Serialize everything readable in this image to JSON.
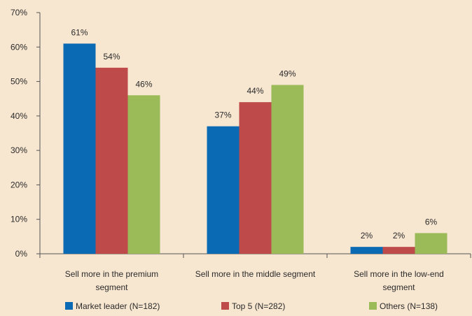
{
  "chart_data": {
    "type": "bar",
    "title": "",
    "xlabel": "",
    "ylabel": "",
    "ylim": [
      0,
      70
    ],
    "yticks": [
      0,
      10,
      20,
      30,
      40,
      50,
      60,
      70
    ],
    "ytick_suffix": "%",
    "grid": false,
    "legend_position": "bottom",
    "categories": [
      [
        "Sell more in the premium",
        "segment"
      ],
      [
        "Sell more in the middle segment"
      ],
      [
        "Sell more in the low-end",
        "segment"
      ]
    ],
    "series": [
      {
        "name": "Market leader (N=182)",
        "color": "#0a6ab4",
        "values": [
          61,
          37,
          2
        ],
        "labels": [
          "61%",
          "37%",
          "2%"
        ]
      },
      {
        "name": "Top 5 (N=282)",
        "color": "#bf4a4a",
        "values": [
          54,
          44,
          2
        ],
        "labels": [
          "54%",
          "44%",
          "2%"
        ]
      },
      {
        "name": "Others (N=138)",
        "color": "#9bbb59",
        "values": [
          46,
          49,
          6
        ],
        "labels": [
          "46%",
          "49%",
          "6%"
        ]
      }
    ]
  }
}
